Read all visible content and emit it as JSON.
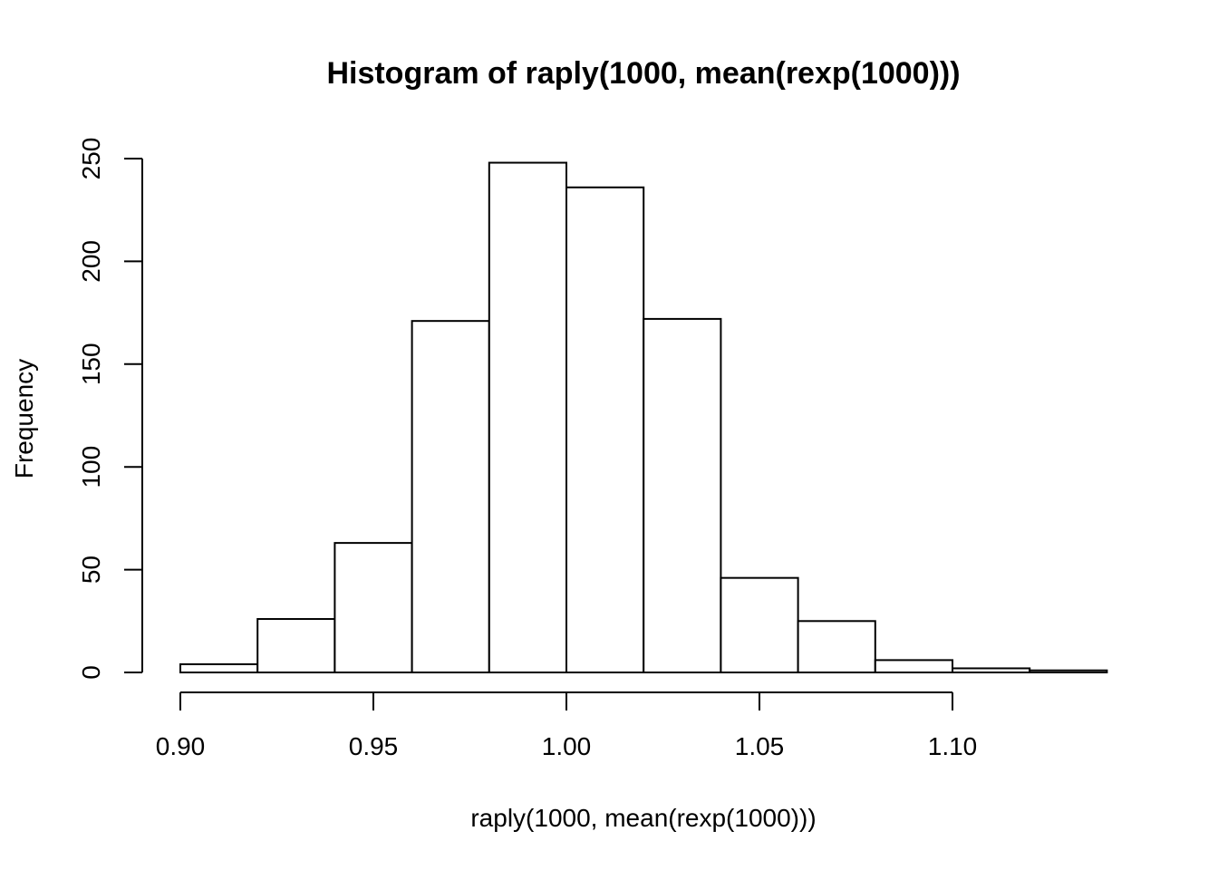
{
  "chart_data": {
    "type": "bar",
    "subtype": "histogram",
    "title": "Histogram of raply(1000, mean(rexp(1000)))",
    "xlabel": "raply(1000, mean(rexp(1000)))",
    "ylabel": "Frequency",
    "bins": [
      {
        "x0": 0.9,
        "x1": 0.92,
        "count": 4
      },
      {
        "x0": 0.92,
        "x1": 0.94,
        "count": 26
      },
      {
        "x0": 0.94,
        "x1": 0.96,
        "count": 63
      },
      {
        "x0": 0.96,
        "x1": 0.98,
        "count": 171
      },
      {
        "x0": 0.98,
        "x1": 1.0,
        "count": 248
      },
      {
        "x0": 1.0,
        "x1": 1.02,
        "count": 236
      },
      {
        "x0": 1.02,
        "x1": 1.04,
        "count": 172
      },
      {
        "x0": 1.04,
        "x1": 1.06,
        "count": 46
      },
      {
        "x0": 1.06,
        "x1": 1.08,
        "count": 25
      },
      {
        "x0": 1.08,
        "x1": 1.1,
        "count": 6
      },
      {
        "x0": 1.1,
        "x1": 1.12,
        "count": 2
      },
      {
        "x0": 1.12,
        "x1": 1.14,
        "count": 1
      }
    ],
    "xticks": [
      {
        "value": 0.9,
        "label": "0.90"
      },
      {
        "value": 0.95,
        "label": "0.95"
      },
      {
        "value": 1.0,
        "label": "1.00"
      },
      {
        "value": 1.05,
        "label": "1.05"
      },
      {
        "value": 1.1,
        "label": "1.10"
      }
    ],
    "yticks": [
      {
        "value": 0,
        "label": "0"
      },
      {
        "value": 50,
        "label": "50"
      },
      {
        "value": 100,
        "label": "100"
      },
      {
        "value": 150,
        "label": "150"
      },
      {
        "value": 200,
        "label": "200"
      },
      {
        "value": 250,
        "label": "250"
      }
    ],
    "xlim": [
      0.9,
      1.14
    ],
    "ylim": [
      0,
      250
    ],
    "grid": false,
    "legend": "none",
    "bar_fill": "#ffffff",
    "bar_stroke": "#000000"
  }
}
